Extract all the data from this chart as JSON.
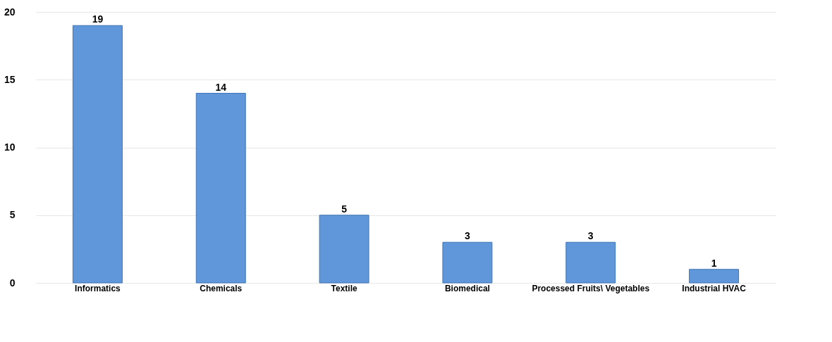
{
  "chart_data": {
    "type": "bar",
    "categories": [
      "Informatics",
      "Chemicals",
      "Textile",
      "Biomedical",
      "Processed Fruits\\ Vegetables",
      "Industrial HVAC"
    ],
    "values": [
      19,
      14,
      5,
      3,
      3,
      1
    ],
    "color": "#5f97da",
    "ylim": [
      0,
      20
    ],
    "yticks": [
      0,
      5,
      10,
      15,
      20
    ],
    "grid": "y",
    "data_labels": true
  }
}
